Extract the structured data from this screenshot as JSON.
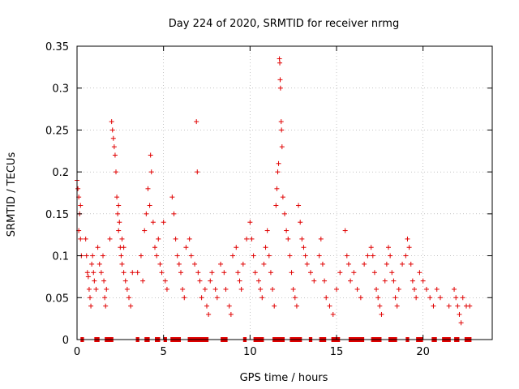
{
  "chart_data": {
    "type": "scatter",
    "title": "Day 224 of 2020, SRMTID for receiver nrmg",
    "xlabel": "GPS time / hours",
    "ylabel": "SRMTID / TECUs",
    "xlim": [
      0,
      24
    ],
    "ylim": [
      0,
      0.35
    ],
    "x_ticks": [
      0,
      5,
      10,
      15,
      20
    ],
    "x_tick_labels": [
      "0",
      "5",
      "10",
      "15",
      "20"
    ],
    "y_ticks": [
      0,
      0.05,
      0.1,
      0.15,
      0.2,
      0.25,
      0.3,
      0.35
    ],
    "y_tick_labels": [
      "0",
      "0.05",
      "0.1",
      "0.15",
      "0.2",
      "0.25",
      "0.3",
      "0.35"
    ],
    "grid": true,
    "marker": "+",
    "color": "#e00000",
    "series": [
      {
        "name": "SRMTID",
        "points": [
          [
            0.0,
            0.19
          ],
          [
            0.05,
            0.18
          ],
          [
            0.1,
            0.17
          ],
          [
            0.15,
            0.15
          ],
          [
            0.2,
            0.16
          ],
          [
            0.1,
            0.13
          ],
          [
            0.2,
            0.12
          ],
          [
            0.25,
            0.1
          ],
          [
            0.5,
            0.12
          ],
          [
            0.55,
            0.1
          ],
          [
            0.6,
            0.08
          ],
          [
            0.65,
            0.075
          ],
          [
            0.7,
            0.06
          ],
          [
            0.75,
            0.05
          ],
          [
            0.8,
            0.04
          ],
          [
            0.85,
            0.09
          ],
          [
            0.9,
            0.1
          ],
          [
            0.95,
            0.08
          ],
          [
            1.0,
            0.07
          ],
          [
            1.1,
            0.06
          ],
          [
            1.2,
            0.11
          ],
          [
            1.3,
            0.09
          ],
          [
            1.4,
            0.08
          ],
          [
            1.5,
            0.1
          ],
          [
            1.55,
            0.07
          ],
          [
            1.6,
            0.05
          ],
          [
            1.65,
            0.04
          ],
          [
            1.7,
            0.06
          ],
          [
            1.9,
            0.12
          ],
          [
            2.0,
            0.26
          ],
          [
            2.05,
            0.25
          ],
          [
            2.1,
            0.24
          ],
          [
            2.15,
            0.23
          ],
          [
            2.2,
            0.22
          ],
          [
            2.25,
            0.2
          ],
          [
            2.3,
            0.17
          ],
          [
            2.35,
            0.15
          ],
          [
            2.4,
            0.13
          ],
          [
            2.5,
            0.11
          ],
          [
            2.55,
            0.1
          ],
          [
            2.6,
            0.09
          ],
          [
            2.7,
            0.08
          ],
          [
            2.8,
            0.07
          ],
          [
            2.9,
            0.06
          ],
          [
            3.0,
            0.05
          ],
          [
            3.1,
            0.04
          ],
          [
            3.2,
            0.08
          ],
          [
            2.4,
            0.16
          ],
          [
            2.45,
            0.14
          ],
          [
            2.6,
            0.12
          ],
          [
            2.7,
            0.11
          ],
          [
            3.5,
            0.08
          ],
          [
            3.7,
            0.1
          ],
          [
            3.8,
            0.07
          ],
          [
            3.9,
            0.13
          ],
          [
            4.0,
            0.15
          ],
          [
            4.1,
            0.18
          ],
          [
            4.2,
            0.16
          ],
          [
            4.25,
            0.22
          ],
          [
            4.3,
            0.2
          ],
          [
            4.4,
            0.14
          ],
          [
            4.5,
            0.11
          ],
          [
            4.6,
            0.1
          ],
          [
            4.7,
            0.12
          ],
          [
            4.8,
            0.09
          ],
          [
            4.9,
            0.08
          ],
          [
            5.0,
            0.14
          ],
          [
            5.1,
            0.07
          ],
          [
            5.2,
            0.06
          ],
          [
            5.5,
            0.17
          ],
          [
            5.6,
            0.15
          ],
          [
            5.7,
            0.12
          ],
          [
            5.8,
            0.1
          ],
          [
            5.9,
            0.09
          ],
          [
            6.0,
            0.08
          ],
          [
            6.1,
            0.06
          ],
          [
            6.2,
            0.05
          ],
          [
            6.3,
            0.11
          ],
          [
            6.5,
            0.12
          ],
          [
            6.6,
            0.1
          ],
          [
            6.8,
            0.09
          ],
          [
            6.9,
            0.26
          ],
          [
            6.95,
            0.2
          ],
          [
            7.0,
            0.08
          ],
          [
            7.1,
            0.07
          ],
          [
            7.2,
            0.05
          ],
          [
            7.4,
            0.06
          ],
          [
            7.5,
            0.04
          ],
          [
            7.6,
            0.03
          ],
          [
            7.7,
            0.07
          ],
          [
            7.8,
            0.08
          ],
          [
            8.0,
            0.06
          ],
          [
            8.1,
            0.05
          ],
          [
            8.3,
            0.09
          ],
          [
            8.5,
            0.08
          ],
          [
            8.6,
            0.06
          ],
          [
            8.8,
            0.04
          ],
          [
            8.9,
            0.03
          ],
          [
            9.0,
            0.1
          ],
          [
            9.2,
            0.11
          ],
          [
            9.3,
            0.08
          ],
          [
            9.4,
            0.07
          ],
          [
            9.5,
            0.06
          ],
          [
            9.6,
            0.09
          ],
          [
            9.8,
            0.12
          ],
          [
            10.0,
            0.14
          ],
          [
            10.1,
            0.12
          ],
          [
            10.2,
            0.1
          ],
          [
            10.3,
            0.08
          ],
          [
            10.5,
            0.07
          ],
          [
            10.6,
            0.06
          ],
          [
            10.7,
            0.05
          ],
          [
            10.8,
            0.09
          ],
          [
            10.9,
            0.11
          ],
          [
            11.0,
            0.13
          ],
          [
            11.1,
            0.1
          ],
          [
            11.2,
            0.08
          ],
          [
            11.3,
            0.06
          ],
          [
            11.4,
            0.04
          ],
          [
            11.5,
            0.16
          ],
          [
            11.55,
            0.18
          ],
          [
            11.6,
            0.2
          ],
          [
            11.65,
            0.21
          ],
          [
            11.7,
            0.335
          ],
          [
            11.72,
            0.33
          ],
          [
            11.74,
            0.31
          ],
          [
            11.76,
            0.3
          ],
          [
            11.8,
            0.26
          ],
          [
            11.82,
            0.25
          ],
          [
            11.85,
            0.23
          ],
          [
            11.9,
            0.17
          ],
          [
            12.0,
            0.15
          ],
          [
            12.1,
            0.13
          ],
          [
            12.2,
            0.12
          ],
          [
            12.3,
            0.1
          ],
          [
            12.4,
            0.08
          ],
          [
            12.5,
            0.06
          ],
          [
            12.6,
            0.05
          ],
          [
            12.7,
            0.04
          ],
          [
            12.8,
            0.16
          ],
          [
            12.9,
            0.14
          ],
          [
            13.0,
            0.12
          ],
          [
            13.1,
            0.11
          ],
          [
            13.2,
            0.1
          ],
          [
            13.3,
            0.09
          ],
          [
            13.5,
            0.08
          ],
          [
            13.7,
            0.07
          ],
          [
            14.0,
            0.1
          ],
          [
            14.1,
            0.12
          ],
          [
            14.2,
            0.09
          ],
          [
            14.3,
            0.07
          ],
          [
            14.4,
            0.05
          ],
          [
            14.6,
            0.04
          ],
          [
            14.8,
            0.03
          ],
          [
            15.0,
            0.06
          ],
          [
            15.2,
            0.08
          ],
          [
            15.5,
            0.13
          ],
          [
            15.6,
            0.1
          ],
          [
            15.7,
            0.09
          ],
          [
            15.8,
            0.07
          ],
          [
            16.0,
            0.08
          ],
          [
            16.2,
            0.06
          ],
          [
            16.4,
            0.05
          ],
          [
            16.6,
            0.09
          ],
          [
            16.8,
            0.1
          ],
          [
            17.0,
            0.11
          ],
          [
            17.1,
            0.1
          ],
          [
            17.2,
            0.08
          ],
          [
            17.3,
            0.06
          ],
          [
            17.4,
            0.05
          ],
          [
            17.5,
            0.04
          ],
          [
            17.6,
            0.03
          ],
          [
            17.8,
            0.07
          ],
          [
            17.9,
            0.09
          ],
          [
            18.0,
            0.11
          ],
          [
            18.1,
            0.1
          ],
          [
            18.2,
            0.08
          ],
          [
            18.3,
            0.07
          ],
          [
            18.4,
            0.05
          ],
          [
            18.5,
            0.04
          ],
          [
            18.6,
            0.06
          ],
          [
            18.8,
            0.09
          ],
          [
            19.0,
            0.1
          ],
          [
            19.1,
            0.12
          ],
          [
            19.2,
            0.11
          ],
          [
            19.3,
            0.09
          ],
          [
            19.4,
            0.07
          ],
          [
            19.5,
            0.06
          ],
          [
            19.6,
            0.05
          ],
          [
            19.8,
            0.08
          ],
          [
            20.0,
            0.07
          ],
          [
            20.2,
            0.06
          ],
          [
            20.4,
            0.05
          ],
          [
            20.6,
            0.04
          ],
          [
            20.8,
            0.06
          ],
          [
            21.0,
            0.05
          ],
          [
            21.5,
            0.04
          ],
          [
            21.8,
            0.06
          ],
          [
            21.9,
            0.05
          ],
          [
            22.0,
            0.04
          ],
          [
            22.1,
            0.03
          ],
          [
            22.2,
            0.02
          ],
          [
            22.3,
            0.05
          ],
          [
            22.5,
            0.04
          ],
          [
            22.7,
            0.04
          ]
        ]
      }
    ],
    "zero_intervals": [
      [
        0.2,
        0.4
      ],
      [
        1.0,
        1.3
      ],
      [
        1.6,
        2.1
      ],
      [
        3.4,
        3.6
      ],
      [
        3.9,
        4.2
      ],
      [
        4.5,
        4.8
      ],
      [
        5.0,
        5.2
      ],
      [
        5.4,
        6.0
      ],
      [
        6.4,
        7.6
      ],
      [
        8.3,
        8.7
      ],
      [
        9.6,
        9.8
      ],
      [
        10.2,
        10.8
      ],
      [
        11.3,
        12.0
      ],
      [
        12.3,
        13.0
      ],
      [
        13.4,
        13.6
      ],
      [
        14.0,
        14.4
      ],
      [
        14.7,
        15.2
      ],
      [
        15.7,
        16.6
      ],
      [
        17.0,
        17.6
      ],
      [
        18.0,
        18.5
      ],
      [
        19.0,
        19.2
      ],
      [
        19.6,
        20.0
      ],
      [
        20.5,
        20.8
      ],
      [
        21.1,
        21.6
      ],
      [
        21.8,
        22.1
      ],
      [
        22.4,
        22.8
      ]
    ]
  }
}
